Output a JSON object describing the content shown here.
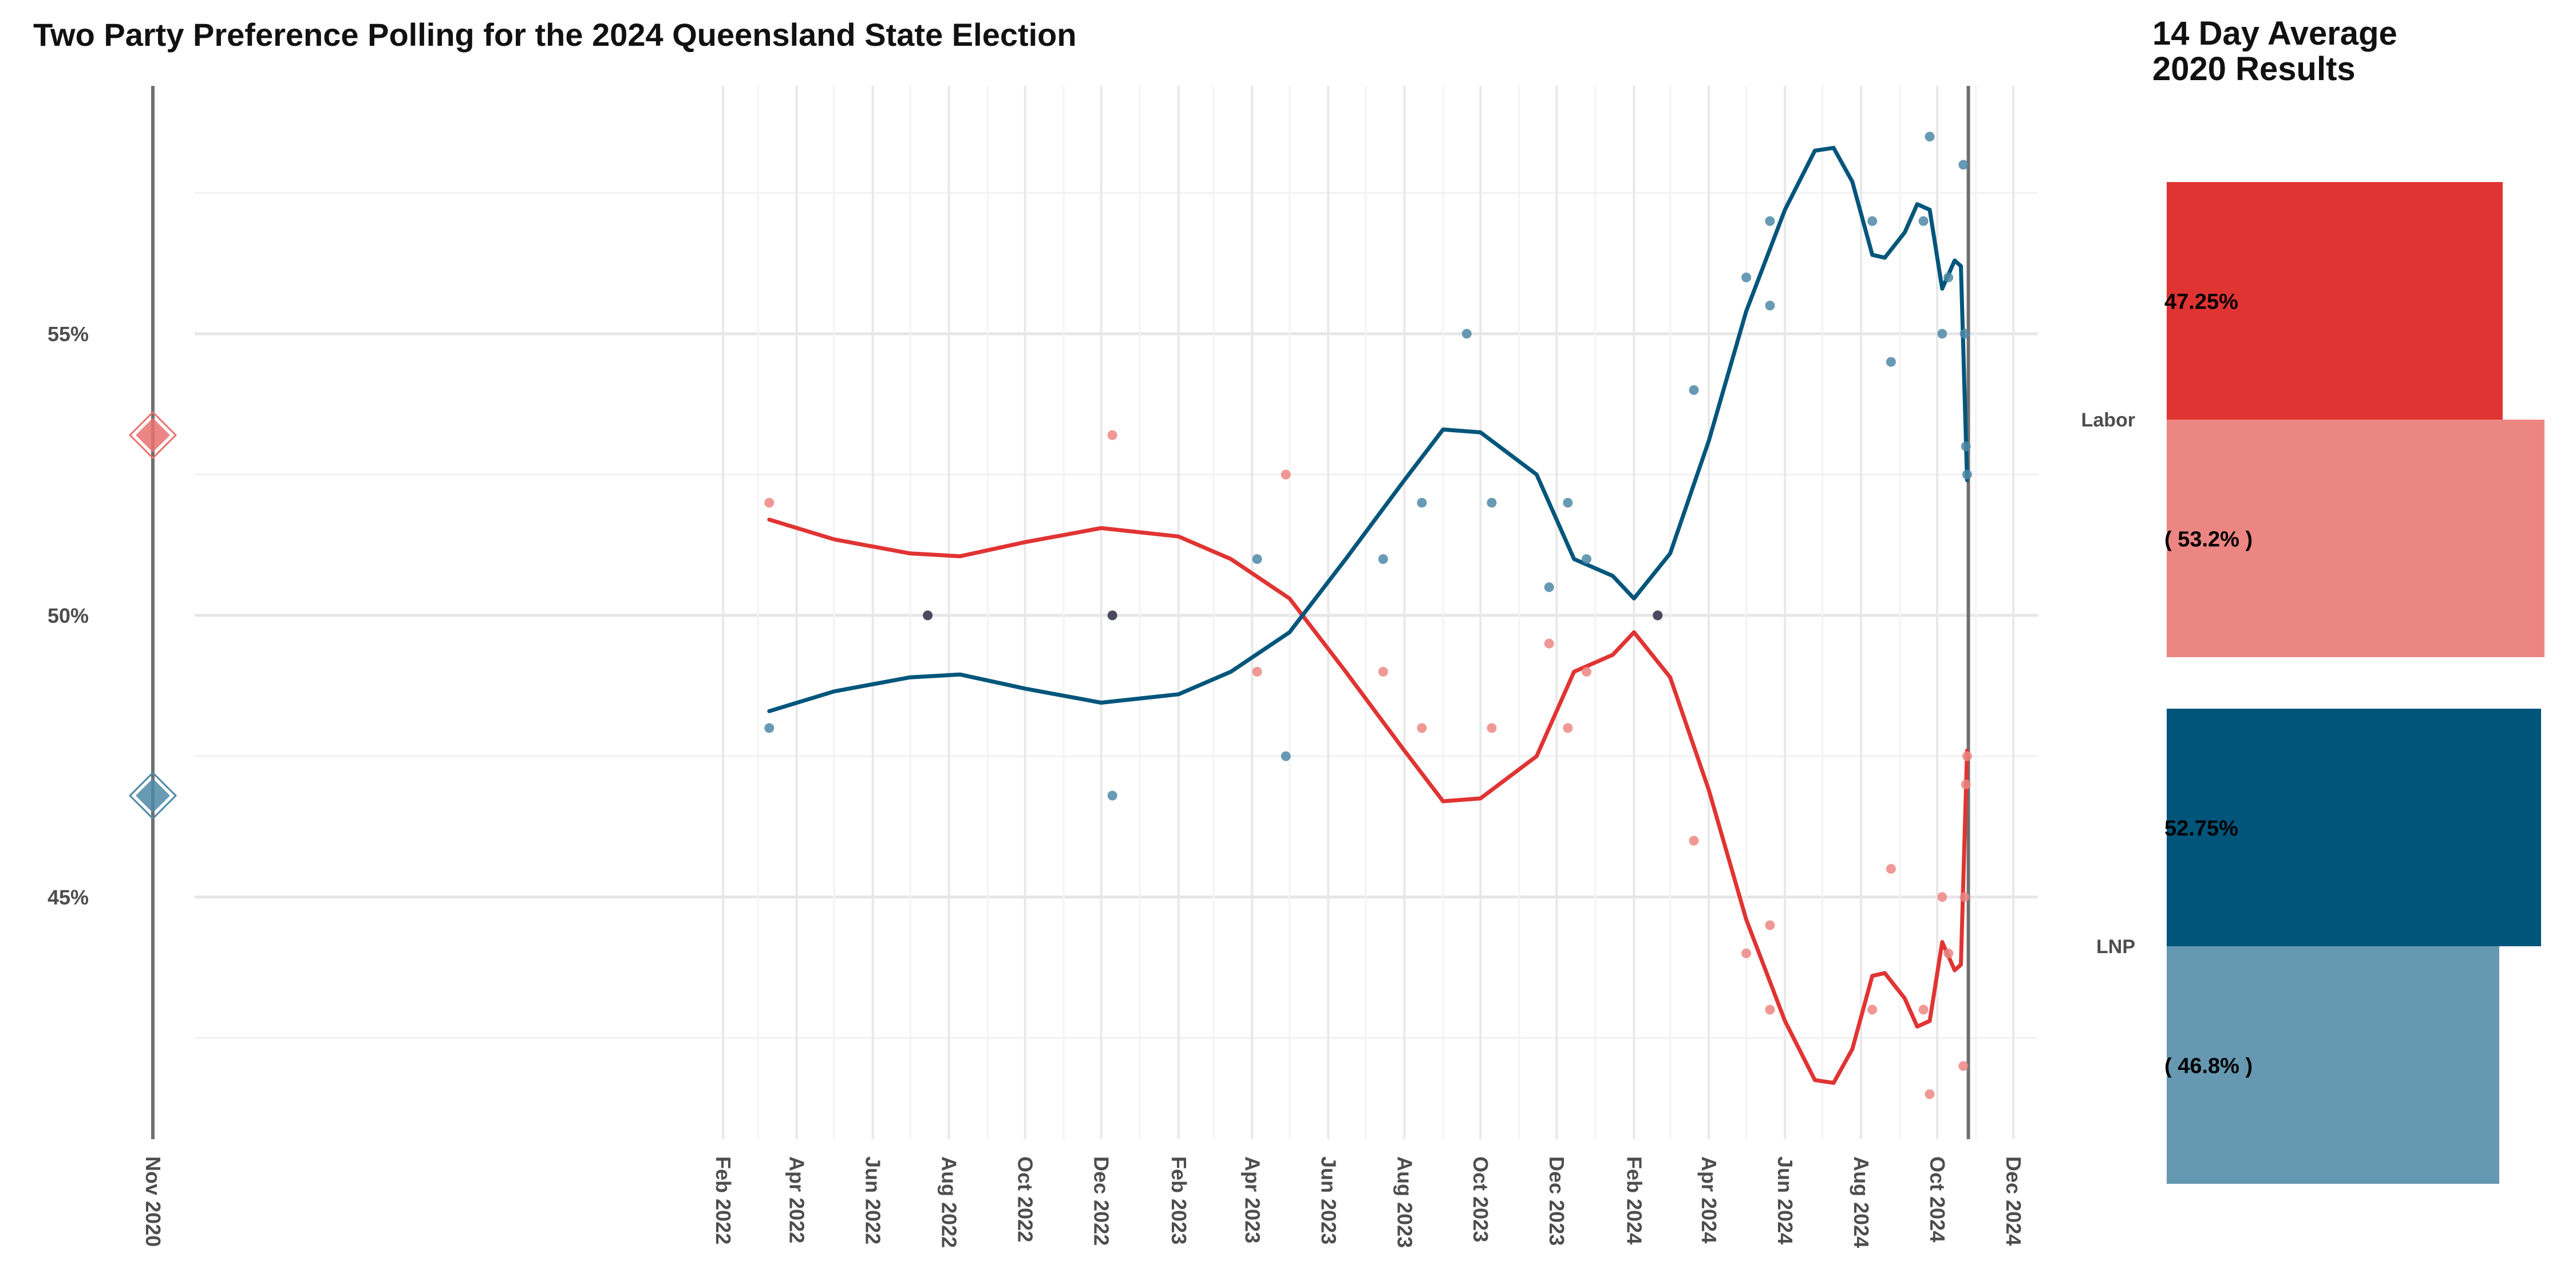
{
  "title": "Two Party Preference Polling for the 2024 Queensland State Election",
  "side_panel": {
    "title_line1": "14 Day Average",
    "title_line2": "2020 Results",
    "groups": [
      {
        "label": "Labor",
        "average_label": "47.25%",
        "result_label": "( 53.2% )",
        "average": 47.25,
        "result": 53.2,
        "average_color": "#e03433",
        "result_color": "#ec8683"
      },
      {
        "label": "LNP",
        "average_label": "52.75%",
        "result_label": "( 46.8% )",
        "average": 52.75,
        "result": 46.8,
        "average_color": "#00557b",
        "result_color": "#6699b1"
      }
    ]
  },
  "chart_data": {
    "type": "line",
    "x_axis": {
      "min": "2020-11-01",
      "max": "2024-12-01",
      "tick_labels": [
        "Nov 2020",
        "Feb 2022",
        "Apr 2022",
        "Jun 2022",
        "Aug 2022",
        "Oct 2022",
        "Dec 2022",
        "Feb 2023",
        "Apr 2023",
        "Jun 2023",
        "Aug 2023",
        "Oct 2023",
        "Dec 2023",
        "Feb 2024",
        "Apr 2024",
        "Jun 2024",
        "Aug 2024",
        "Oct 2024",
        "Dec 2024"
      ]
    },
    "y_axis": {
      "min": 40.5,
      "max": 59,
      "ticks": [
        45,
        50,
        55
      ],
      "tick_labels": [
        "45%",
        "50%",
        "55%"
      ]
    },
    "grid": true,
    "vertical_lines": [
      "2020-11-01",
      "2024-10-26"
    ],
    "results_2020": [
      {
        "party": "Labor",
        "value": 53.2,
        "color": "#e8716f"
      },
      {
        "party": "LNP",
        "value": 46.8,
        "color": "#4d88a6"
      }
    ],
    "series": [
      {
        "party": "Labor",
        "color": "#e03433",
        "trend": [
          [
            "2022-03-10",
            51.7
          ],
          [
            "2022-05-01",
            51.35
          ],
          [
            "2022-07-01",
            51.1
          ],
          [
            "2022-08-10",
            51.05
          ],
          [
            "2022-10-01",
            51.3
          ],
          [
            "2022-12-01",
            51.55
          ],
          [
            "2023-02-01",
            51.4
          ],
          [
            "2023-03-15",
            51.0
          ],
          [
            "2023-05-01",
            50.3
          ],
          [
            "2023-06-15",
            49.0
          ],
          [
            "2023-08-01",
            47.6
          ],
          [
            "2023-09-01",
            46.7
          ],
          [
            "2023-10-01",
            46.75
          ],
          [
            "2023-11-15",
            47.5
          ],
          [
            "2023-12-15",
            49.0
          ],
          [
            "2024-01-15",
            49.3
          ],
          [
            "2024-02-01",
            49.7
          ],
          [
            "2024-03-01",
            48.9
          ],
          [
            "2024-04-01",
            46.9
          ],
          [
            "2024-05-01",
            44.6
          ],
          [
            "2024-06-01",
            42.8
          ],
          [
            "2024-06-25",
            41.75
          ],
          [
            "2024-07-10",
            41.7
          ],
          [
            "2024-07-25",
            42.3
          ],
          [
            "2024-08-10",
            43.6
          ],
          [
            "2024-08-20",
            43.65
          ],
          [
            "2024-09-05",
            43.2
          ],
          [
            "2024-09-15",
            42.7
          ],
          [
            "2024-09-25",
            42.8
          ],
          [
            "2024-10-05",
            44.2
          ],
          [
            "2024-10-15",
            43.7
          ],
          [
            "2024-10-20",
            43.8
          ],
          [
            "2024-10-25",
            47.6
          ]
        ],
        "polls": [
          [
            "2022-03-10",
            52
          ],
          [
            "2022-12-10",
            53.2
          ],
          [
            "2023-04-05",
            49
          ],
          [
            "2023-04-28",
            52.5
          ],
          [
            "2023-07-15",
            49
          ],
          [
            "2023-08-15",
            48
          ],
          [
            "2023-10-10",
            48
          ],
          [
            "2023-11-25",
            49.5
          ],
          [
            "2023-12-10",
            48
          ],
          [
            "2023-12-25",
            49
          ],
          [
            "2024-02-20",
            50
          ],
          [
            "2024-03-20",
            46
          ],
          [
            "2024-05-01",
            44
          ],
          [
            "2024-05-20",
            43
          ],
          [
            "2024-05-20",
            44.5
          ],
          [
            "2024-08-10",
            43
          ],
          [
            "2024-08-25",
            45.5
          ],
          [
            "2024-09-20",
            43
          ],
          [
            "2024-09-25",
            41.5
          ],
          [
            "2024-10-05",
            45
          ],
          [
            "2024-10-10",
            44
          ],
          [
            "2024-10-22",
            42
          ],
          [
            "2024-10-23",
            45
          ],
          [
            "2024-10-24",
            47
          ],
          [
            "2024-10-25",
            47.5
          ]
        ]
      },
      {
        "party": "LNP",
        "color": "#00557b",
        "trend": [
          [
            "2022-03-10",
            48.3
          ],
          [
            "2022-05-01",
            48.65
          ],
          [
            "2022-07-01",
            48.9
          ],
          [
            "2022-08-10",
            48.95
          ],
          [
            "2022-10-01",
            48.7
          ],
          [
            "2022-12-01",
            48.45
          ],
          [
            "2023-02-01",
            48.6
          ],
          [
            "2023-03-15",
            49.0
          ],
          [
            "2023-05-01",
            49.7
          ],
          [
            "2023-06-15",
            51.0
          ],
          [
            "2023-08-01",
            52.4
          ],
          [
            "2023-09-01",
            53.3
          ],
          [
            "2023-10-01",
            53.25
          ],
          [
            "2023-11-15",
            52.5
          ],
          [
            "2023-12-15",
            51.0
          ],
          [
            "2024-01-15",
            50.7
          ],
          [
            "2024-02-01",
            50.3
          ],
          [
            "2024-03-01",
            51.1
          ],
          [
            "2024-04-01",
            53.1
          ],
          [
            "2024-05-01",
            55.4
          ],
          [
            "2024-06-01",
            57.2
          ],
          [
            "2024-06-25",
            58.25
          ],
          [
            "2024-07-10",
            58.3
          ],
          [
            "2024-07-25",
            57.7
          ],
          [
            "2024-08-10",
            56.4
          ],
          [
            "2024-08-20",
            56.35
          ],
          [
            "2024-09-05",
            56.8
          ],
          [
            "2024-09-15",
            57.3
          ],
          [
            "2024-09-25",
            57.2
          ],
          [
            "2024-10-05",
            55.8
          ],
          [
            "2024-10-15",
            56.3
          ],
          [
            "2024-10-20",
            56.2
          ],
          [
            "2024-10-25",
            52.4
          ]
        ],
        "polls": [
          [
            "2022-03-10",
            48
          ],
          [
            "2022-12-10",
            46.8
          ],
          [
            "2023-04-05",
            51
          ],
          [
            "2023-04-28",
            47.5
          ],
          [
            "2023-07-15",
            51
          ],
          [
            "2023-08-15",
            52
          ],
          [
            "2023-09-20",
            55
          ],
          [
            "2023-10-10",
            52
          ],
          [
            "2023-11-25",
            50.5
          ],
          [
            "2023-12-10",
            52
          ],
          [
            "2023-12-25",
            51
          ],
          [
            "2024-02-20",
            50
          ],
          [
            "2024-03-20",
            54
          ],
          [
            "2024-05-01",
            56
          ],
          [
            "2024-05-20",
            57
          ],
          [
            "2024-05-20",
            55.5
          ],
          [
            "2024-08-10",
            57
          ],
          [
            "2024-08-25",
            54.5
          ],
          [
            "2024-09-20",
            57
          ],
          [
            "2024-09-25",
            58.5
          ],
          [
            "2024-10-05",
            55
          ],
          [
            "2024-10-10",
            56
          ],
          [
            "2024-10-22",
            58
          ],
          [
            "2024-10-23",
            55
          ],
          [
            "2024-10-24",
            53
          ],
          [
            "2024-10-25",
            52.5
          ]
        ]
      }
    ],
    "neutral_polls": [
      [
        "2022-07-15",
        50
      ],
      [
        "2022-12-10",
        50
      ],
      [
        "2024-02-20",
        50
      ]
    ]
  }
}
